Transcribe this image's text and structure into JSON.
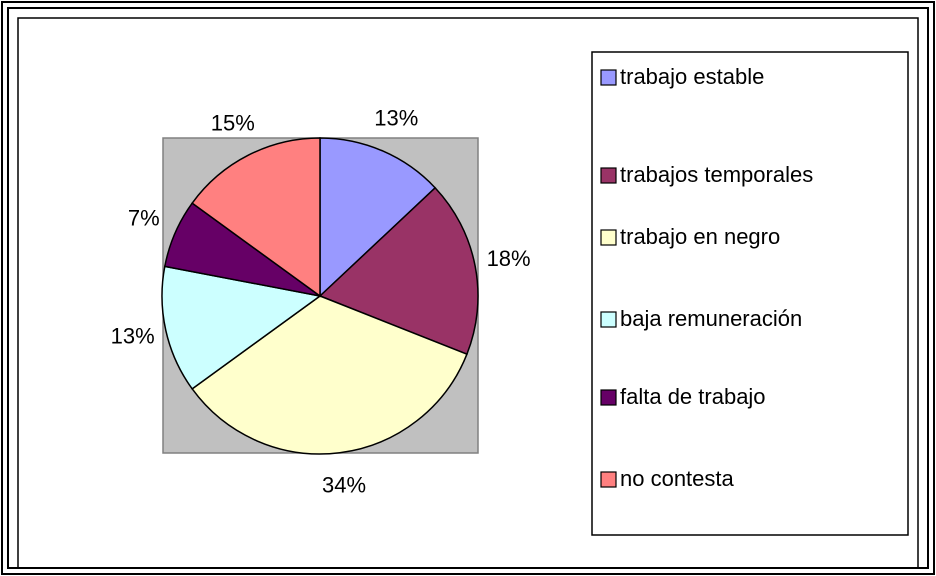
{
  "chart_data": {
    "type": "pie",
    "categories": [
      "trabajo estable",
      "trabajos temporales",
      "trabajo en negro",
      "baja remuneración",
      "falta de trabajo",
      "no contesta"
    ],
    "values": [
      13,
      18,
      34,
      13,
      7,
      15
    ],
    "value_labels": [
      "13%",
      "18%",
      "34%",
      "13%",
      "7%",
      "15%"
    ],
    "colors": [
      "#9999ff",
      "#993366",
      "#ffffcc",
      "#ccffff",
      "#660066",
      "#ff8080"
    ],
    "legend": "right"
  }
}
